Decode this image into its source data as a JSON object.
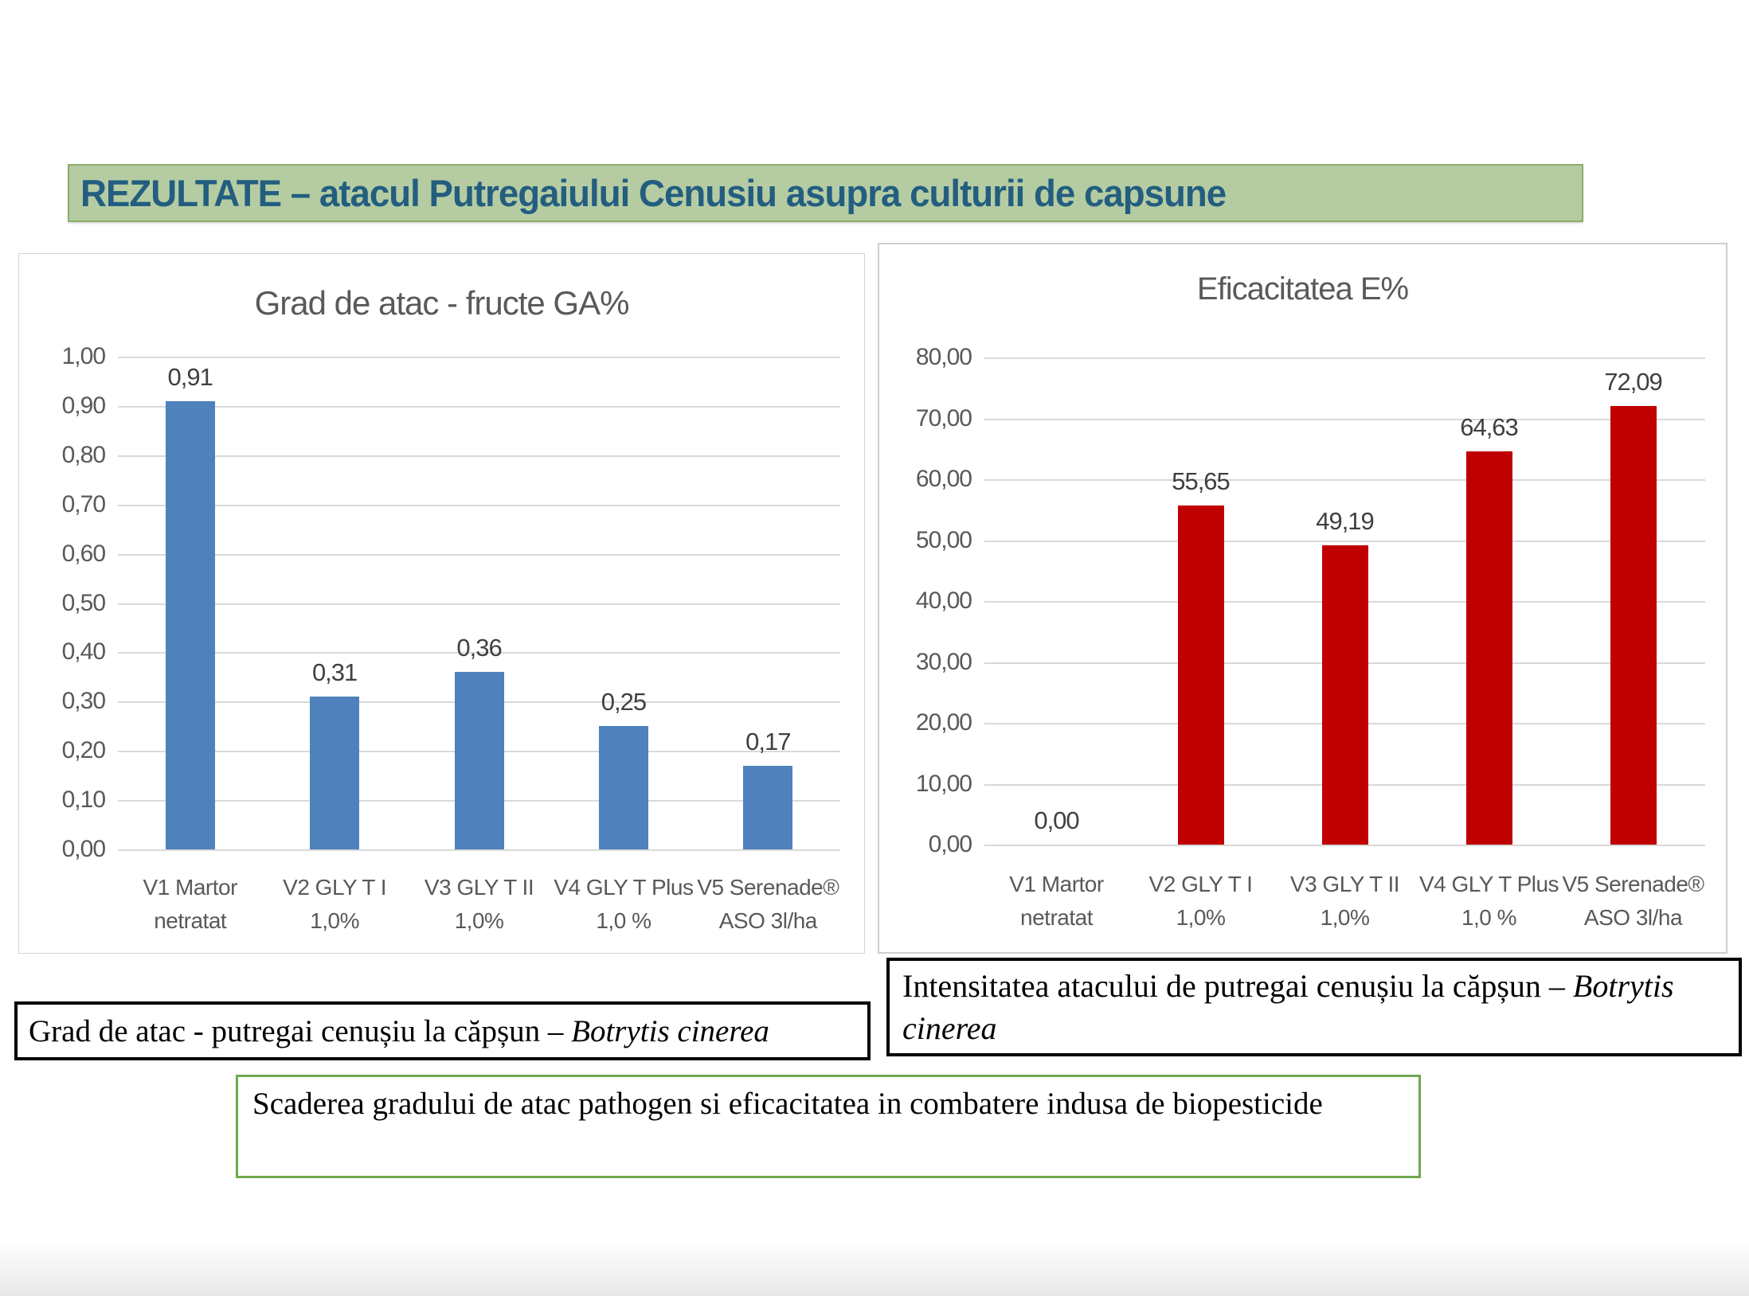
{
  "slide": {
    "title": "REZULTATE – atacul Putregaiului Cenusiu asupra culturii de capsune",
    "colors": {
      "banner_bg": "#b5cca2",
      "banner_border": "#8aad69",
      "banner_text": "#235e80",
      "blue_bar": "#4f81bd",
      "red_bar": "#c00000",
      "gridline": "#d9d9d9",
      "chart_text": "#595959",
      "green_box_border": "#6fa84f"
    }
  },
  "chart_data": [
    {
      "type": "bar",
      "title": "Grad de atac - fructe GA%",
      "categories": [
        [
          "V1 Martor",
          "netratat"
        ],
        [
          "V2 GLY T I 1,0%"
        ],
        [
          "V3 GLY T II 1,0%"
        ],
        [
          "V4 GLY T Plus",
          "1,0 %"
        ],
        [
          "V5 Serenade®",
          "ASO 3l/ha"
        ]
      ],
      "values": [
        0.91,
        0.31,
        0.36,
        0.25,
        0.17
      ],
      "value_labels": [
        "0,91",
        "0,31",
        "0,36",
        "0,25",
        "0,17"
      ],
      "ylim": [
        0,
        1.0
      ],
      "ytick_labels": [
        "1,00",
        "0,90",
        "0,80",
        "0,70",
        "0,60",
        "0,50",
        "0,40",
        "0,30",
        "0,20",
        "0,10",
        "0,00"
      ],
      "bar_color": "#4f81bd",
      "grid": true,
      "legend": "none"
    },
    {
      "type": "bar",
      "title": "Eficacitatea E%",
      "categories": [
        [
          "V1 Martor",
          "netratat"
        ],
        [
          "V2 GLY T I 1,0%"
        ],
        [
          "V3 GLY T II 1,0%"
        ],
        [
          "V4 GLY T Plus",
          "1,0 %"
        ],
        [
          "V5 Serenade®",
          "ASO 3l/ha"
        ]
      ],
      "values": [
        0.0,
        55.65,
        49.19,
        64.63,
        72.09
      ],
      "value_labels": [
        "0,00",
        "55,65",
        "49,19",
        "64,63",
        "72,09"
      ],
      "ylim": [
        0,
        80
      ],
      "ytick_labels": [
        "80,00",
        "70,00",
        "60,00",
        "50,00",
        "40,00",
        "30,00",
        "20,00",
        "10,00",
        "0,00"
      ],
      "bar_color": "#c00000",
      "grid": true,
      "legend": "none"
    }
  ],
  "captions": {
    "left_box": {
      "text": "Grad de atac - putregai cenușiu la căpșun – ",
      "italic": "Botrytis cinerea"
    },
    "right_box": {
      "text": "Intensitatea atacului de putregai cenușiu la căpșun – ",
      "italic": "Botrytis cinerea"
    },
    "green_box": {
      "text": "Scaderea gradului de atac pathogen si eficacitatea in combatere indusa de biopesticide"
    }
  }
}
